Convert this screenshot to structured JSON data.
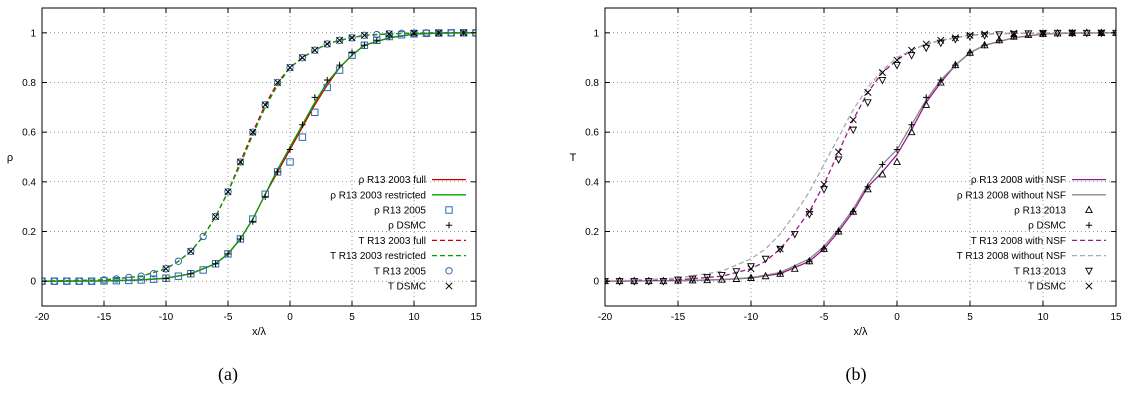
{
  "chart_data": [
    {
      "type": "line",
      "panel": "(a)",
      "caption": "(a)",
      "xlabel": "x/λ",
      "ylabel": "ρ",
      "xlim": [
        -20,
        15
      ],
      "ylim": [
        -0.1,
        1.1
      ],
      "xticks": [
        -20,
        -15,
        -10,
        -5,
        0,
        5,
        10,
        15
      ],
      "yticks": [
        0,
        0.2,
        0.4,
        0.6,
        0.8,
        1
      ],
      "grid": true,
      "legend_position": "bottom-right",
      "series": [
        {
          "name": "ρ R13 2003 full",
          "style": "line",
          "color": "#cc0000",
          "dash": "solid",
          "x": [
            -20,
            -15,
            -12,
            -10,
            -8,
            -6,
            -5,
            -4,
            -3,
            -2,
            -1,
            0,
            1,
            2,
            3,
            4,
            5,
            6,
            8,
            10,
            12,
            15
          ],
          "y": [
            0.0,
            0.001,
            0.005,
            0.012,
            0.03,
            0.07,
            0.11,
            0.17,
            0.25,
            0.35,
            0.44,
            0.53,
            0.62,
            0.71,
            0.79,
            0.86,
            0.91,
            0.95,
            0.98,
            0.995,
            0.999,
            1.0
          ]
        },
        {
          "name": "ρ R13 2003 restricted",
          "style": "line",
          "color": "#00a000",
          "dash": "solid",
          "x": [
            -20,
            -15,
            -12,
            -10,
            -8,
            -6,
            -5,
            -4,
            -3,
            -2,
            -1,
            0,
            1,
            2,
            3,
            4,
            5,
            6,
            8,
            10,
            12,
            15
          ],
          "y": [
            0.0,
            0.001,
            0.005,
            0.012,
            0.03,
            0.07,
            0.11,
            0.17,
            0.25,
            0.35,
            0.45,
            0.54,
            0.63,
            0.72,
            0.8,
            0.86,
            0.91,
            0.95,
            0.98,
            0.995,
            0.999,
            1.0
          ]
        },
        {
          "name": "ρ R13 2005",
          "style": "marker",
          "marker": "square",
          "color": "#3366aa",
          "x": [
            -20,
            -19,
            -18,
            -17,
            -16,
            -15,
            -14,
            -13,
            -12,
            -11,
            -10,
            -9,
            -8,
            -7,
            -6,
            -5,
            -4,
            -3,
            -2,
            -1,
            0,
            1,
            2,
            3,
            4,
            5,
            6,
            7,
            8,
            9,
            10,
            11,
            12,
            13,
            14,
            15
          ],
          "y": [
            0,
            0,
            0,
            0,
            0,
            0.001,
            0.002,
            0.003,
            0.005,
            0.008,
            0.012,
            0.02,
            0.03,
            0.045,
            0.07,
            0.11,
            0.17,
            0.25,
            0.35,
            0.44,
            0.48,
            0.58,
            0.68,
            0.78,
            0.85,
            0.91,
            0.95,
            0.97,
            0.985,
            0.992,
            0.996,
            0.998,
            0.999,
            1,
            1,
            1
          ]
        },
        {
          "name": "ρ DSMC",
          "style": "marker",
          "marker": "plus",
          "color": "#000000",
          "x": [
            -10,
            -8,
            -6,
            -5,
            -4,
            -3,
            -2,
            -1,
            0,
            1,
            2,
            3,
            4,
            5,
            6,
            7,
            8,
            10,
            12,
            14
          ],
          "y": [
            0.01,
            0.03,
            0.07,
            0.11,
            0.17,
            0.24,
            0.34,
            0.44,
            0.53,
            0.63,
            0.74,
            0.81,
            0.87,
            0.92,
            0.95,
            0.97,
            0.985,
            0.996,
            0.999,
            1
          ]
        },
        {
          "name": "T R13 2003 full",
          "style": "line",
          "color": "#cc0000",
          "dash": "dashed",
          "x": [
            -20,
            -15,
            -12,
            -10,
            -9,
            -8,
            -7,
            -6,
            -5,
            -4,
            -3,
            -2,
            -1,
            0,
            1,
            2,
            3,
            4,
            5,
            6,
            8,
            10,
            12,
            15
          ],
          "y": [
            0.0,
            0.005,
            0.02,
            0.05,
            0.08,
            0.12,
            0.18,
            0.26,
            0.36,
            0.48,
            0.6,
            0.71,
            0.8,
            0.86,
            0.9,
            0.93,
            0.955,
            0.97,
            0.98,
            0.99,
            0.996,
            0.999,
            1,
            1
          ]
        },
        {
          "name": "T R13 2003 restricted",
          "style": "line",
          "color": "#00a000",
          "dash": "dashed",
          "x": [
            -20,
            -15,
            -12,
            -10,
            -9,
            -8,
            -7,
            -6,
            -5,
            -4,
            -3,
            -2,
            -1,
            0,
            1,
            2,
            3,
            4,
            5,
            6,
            8,
            10,
            12,
            15
          ],
          "y": [
            0.0,
            0.005,
            0.02,
            0.05,
            0.08,
            0.12,
            0.18,
            0.26,
            0.36,
            0.47,
            0.59,
            0.7,
            0.79,
            0.86,
            0.9,
            0.93,
            0.955,
            0.97,
            0.98,
            0.99,
            0.996,
            0.999,
            1,
            1
          ]
        },
        {
          "name": "T R13 2005",
          "style": "marker",
          "marker": "circle",
          "color": "#3366aa",
          "x": [
            -20,
            -19,
            -18,
            -17,
            -16,
            -15,
            -14,
            -13,
            -12,
            -11,
            -10,
            -9,
            -8,
            -7,
            -6,
            -5,
            -4,
            -3,
            -2,
            -1,
            0,
            1,
            2,
            3,
            4,
            5,
            6,
            7,
            8,
            9,
            10,
            11,
            12,
            13,
            14,
            15
          ],
          "y": [
            0,
            0,
            0,
            0,
            0,
            0.005,
            0.009,
            0.015,
            0.02,
            0.03,
            0.05,
            0.08,
            0.12,
            0.18,
            0.26,
            0.36,
            0.48,
            0.6,
            0.71,
            0.8,
            0.86,
            0.9,
            0.93,
            0.955,
            0.97,
            0.98,
            0.99,
            0.993,
            0.996,
            0.998,
            0.999,
            1,
            1,
            1,
            1,
            1
          ]
        },
        {
          "name": "T DSMC",
          "style": "marker",
          "marker": "cross",
          "color": "#000000",
          "x": [
            -10,
            -8,
            -6,
            -5,
            -4,
            -3,
            -2,
            -1,
            0,
            1,
            2,
            3,
            4,
            5,
            6,
            8,
            10,
            12,
            14
          ],
          "y": [
            0.05,
            0.12,
            0.26,
            0.36,
            0.48,
            0.6,
            0.71,
            0.8,
            0.86,
            0.9,
            0.93,
            0.955,
            0.97,
            0.98,
            0.99,
            0.996,
            0.999,
            1,
            1
          ]
        }
      ]
    },
    {
      "type": "line",
      "panel": "(b)",
      "caption": "(b)",
      "xlabel": "x/λ",
      "ylabel": "T",
      "xlim": [
        -20,
        15
      ],
      "ylim": [
        -0.1,
        1.1
      ],
      "xticks": [
        -20,
        -15,
        -10,
        -5,
        0,
        5,
        10,
        15
      ],
      "yticks": [
        0,
        0.2,
        0.4,
        0.6,
        0.8,
        1
      ],
      "grid": true,
      "legend_position": "bottom-right",
      "series": [
        {
          "name": "ρ R13 2008 with NSF",
          "style": "line",
          "color": "#9b1a8a",
          "dash": "solid",
          "x": [
            -20,
            -15,
            -12,
            -10,
            -8,
            -6,
            -5,
            -4,
            -3,
            -2,
            -1,
            0,
            1,
            2,
            3,
            4,
            5,
            6,
            8,
            10,
            12,
            15
          ],
          "y": [
            0.0,
            0.002,
            0.006,
            0.013,
            0.03,
            0.08,
            0.13,
            0.2,
            0.28,
            0.38,
            0.44,
            0.51,
            0.61,
            0.72,
            0.8,
            0.87,
            0.92,
            0.95,
            0.98,
            0.995,
            0.999,
            1.0
          ]
        },
        {
          "name": "ρ R13 2008 without NSF",
          "style": "line",
          "color": "#888888",
          "dash": "solid",
          "x": [
            -20,
            -15,
            -12,
            -10,
            -8,
            -6,
            -5,
            -4,
            -3,
            -2,
            -1,
            0,
            1,
            2,
            3,
            4,
            5,
            6,
            8,
            10,
            12,
            15
          ],
          "y": [
            0.0,
            0.002,
            0.006,
            0.014,
            0.035,
            0.09,
            0.14,
            0.21,
            0.29,
            0.39,
            0.47,
            0.53,
            0.63,
            0.73,
            0.81,
            0.87,
            0.92,
            0.95,
            0.98,
            0.995,
            0.999,
            1.0
          ]
        },
        {
          "name": "ρ R13 2013",
          "style": "marker",
          "marker": "triangle",
          "color": "#000000",
          "x": [
            -20,
            -19,
            -18,
            -17,
            -16,
            -15,
            -14,
            -13,
            -12,
            -11,
            -10,
            -9,
            -8,
            -7,
            -6,
            -5,
            -4,
            -3,
            -2,
            -1,
            0,
            1,
            2,
            3,
            4,
            5,
            6,
            7,
            8,
            9,
            10,
            11,
            12,
            13,
            14,
            15
          ],
          "y": [
            0,
            0,
            0,
            0,
            0,
            0.002,
            0.003,
            0.004,
            0.006,
            0.009,
            0.013,
            0.02,
            0.03,
            0.05,
            0.08,
            0.13,
            0.2,
            0.28,
            0.37,
            0.43,
            0.48,
            0.6,
            0.71,
            0.8,
            0.87,
            0.92,
            0.95,
            0.97,
            0.985,
            0.992,
            0.996,
            0.998,
            0.999,
            1,
            1,
            1
          ]
        },
        {
          "name": "ρ DSMC",
          "style": "marker",
          "marker": "plus",
          "color": "#000000",
          "x": [
            -10,
            -8,
            -6,
            -5,
            -4,
            -3,
            -2,
            -1,
            0,
            1,
            2,
            3,
            4,
            5,
            6,
            7,
            8,
            10,
            12,
            14
          ],
          "y": [
            0.013,
            0.03,
            0.08,
            0.13,
            0.2,
            0.28,
            0.38,
            0.47,
            0.53,
            0.63,
            0.74,
            0.81,
            0.87,
            0.92,
            0.95,
            0.97,
            0.985,
            0.996,
            0.999,
            1
          ]
        },
        {
          "name": "T R13 2008 with NSF",
          "style": "line",
          "color": "#9b1a8a",
          "dash": "dashed",
          "x": [
            -20,
            -15,
            -12,
            -10,
            -9,
            -8,
            -7,
            -6,
            -5,
            -4,
            -3,
            -2,
            -1,
            0,
            1,
            2,
            3,
            4,
            5,
            6,
            8,
            10,
            12,
            15
          ],
          "y": [
            0.0,
            0.005,
            0.02,
            0.05,
            0.08,
            0.13,
            0.2,
            0.28,
            0.39,
            0.52,
            0.65,
            0.76,
            0.84,
            0.89,
            0.93,
            0.955,
            0.97,
            0.98,
            0.99,
            0.995,
            0.998,
            0.999,
            1,
            1
          ]
        },
        {
          "name": "T R13 2008 without NSF",
          "style": "line",
          "color": "#aaaaaa",
          "dash": "dashed",
          "x": [
            -20,
            -15,
            -12,
            -10,
            -9,
            -8,
            -7,
            -6,
            -5,
            -4,
            -3,
            -2,
            -1,
            0,
            1,
            2,
            3,
            4,
            5,
            6,
            8,
            10,
            12,
            15
          ],
          "y": [
            0.0,
            0.012,
            0.04,
            0.09,
            0.13,
            0.19,
            0.27,
            0.36,
            0.47,
            0.58,
            0.69,
            0.78,
            0.85,
            0.9,
            0.93,
            0.955,
            0.97,
            0.98,
            0.99,
            0.995,
            0.998,
            0.999,
            1,
            1
          ]
        },
        {
          "name": "T R13 2013",
          "style": "marker",
          "marker": "triangle-down",
          "color": "#000000",
          "x": [
            -20,
            -19,
            -18,
            -17,
            -16,
            -15,
            -14,
            -13,
            -12,
            -11,
            -10,
            -9,
            -8,
            -7,
            -6,
            -5,
            -4,
            -3,
            -2,
            -1,
            0,
            1,
            2,
            3,
            4,
            5,
            6,
            7,
            8,
            9,
            10,
            11,
            12,
            13,
            14,
            15
          ],
          "y": [
            0,
            0,
            0,
            0,
            0,
            0.006,
            0.01,
            0.016,
            0.025,
            0.04,
            0.06,
            0.09,
            0.13,
            0.19,
            0.27,
            0.37,
            0.49,
            0.61,
            0.72,
            0.81,
            0.87,
            0.91,
            0.94,
            0.96,
            0.975,
            0.985,
            0.99,
            0.994,
            0.996,
            0.998,
            0.999,
            1,
            1,
            1,
            1,
            1
          ]
        },
        {
          "name": "T DSMC",
          "style": "marker",
          "marker": "cross",
          "color": "#000000",
          "x": [
            -10,
            -8,
            -6,
            -5,
            -4,
            -3,
            -2,
            -1,
            0,
            1,
            2,
            3,
            4,
            5,
            6,
            8,
            10,
            12,
            14
          ],
          "y": [
            0.05,
            0.13,
            0.28,
            0.39,
            0.52,
            0.65,
            0.76,
            0.84,
            0.89,
            0.93,
            0.955,
            0.97,
            0.98,
            0.99,
            0.995,
            0.998,
            0.999,
            1,
            1
          ]
        }
      ]
    }
  ]
}
